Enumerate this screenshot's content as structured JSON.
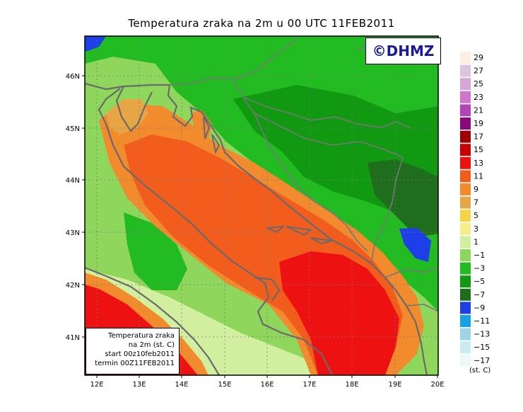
{
  "title": "Temperatura zraka na 2m u 00 UTC 11FEB2011",
  "copyright": "©DHMZ",
  "info_box": {
    "line1": "Temperatura zraka",
    "line2": "na 2m (st. C)",
    "line3": "start 00z10feb2011",
    "line4": "termin 00Z11FEB2011"
  },
  "axes": {
    "lon_labels": [
      "12E",
      "13E",
      "14E",
      "15E",
      "16E",
      "17E",
      "18E",
      "19E",
      "20E"
    ],
    "lat_labels": [
      "46N",
      "45N",
      "44N",
      "43N",
      "42N",
      "41N"
    ]
  },
  "legend": {
    "unit": "(st. C)",
    "labels": [
      "29",
      "27",
      "25",
      "23",
      "21",
      "19",
      "17",
      "15",
      "13",
      "11",
      "9",
      "7",
      "5",
      "3",
      "1",
      "−1",
      "−3",
      "−5",
      "−7",
      "−9",
      "−11",
      "−13",
      "−15",
      "−17"
    ],
    "colors": [
      "#fbeee3",
      "#dcc4dc",
      "#d6a6d6",
      "#cc77cc",
      "#b443b4",
      "#8b0a7a",
      "#a10000",
      "#cc0000",
      "#ee1111",
      "#f25c1c",
      "#f28a2e",
      "#e8a545",
      "#f5d548",
      "#f5ee88",
      "#d2efa0",
      "#8ed65c",
      "#22bb22",
      "#119911",
      "#1e6e1e",
      "#1e3ee8",
      "#18a2e6",
      "#9ed4e8",
      "#c8ecf0",
      "#edf9f8"
    ]
  }
}
